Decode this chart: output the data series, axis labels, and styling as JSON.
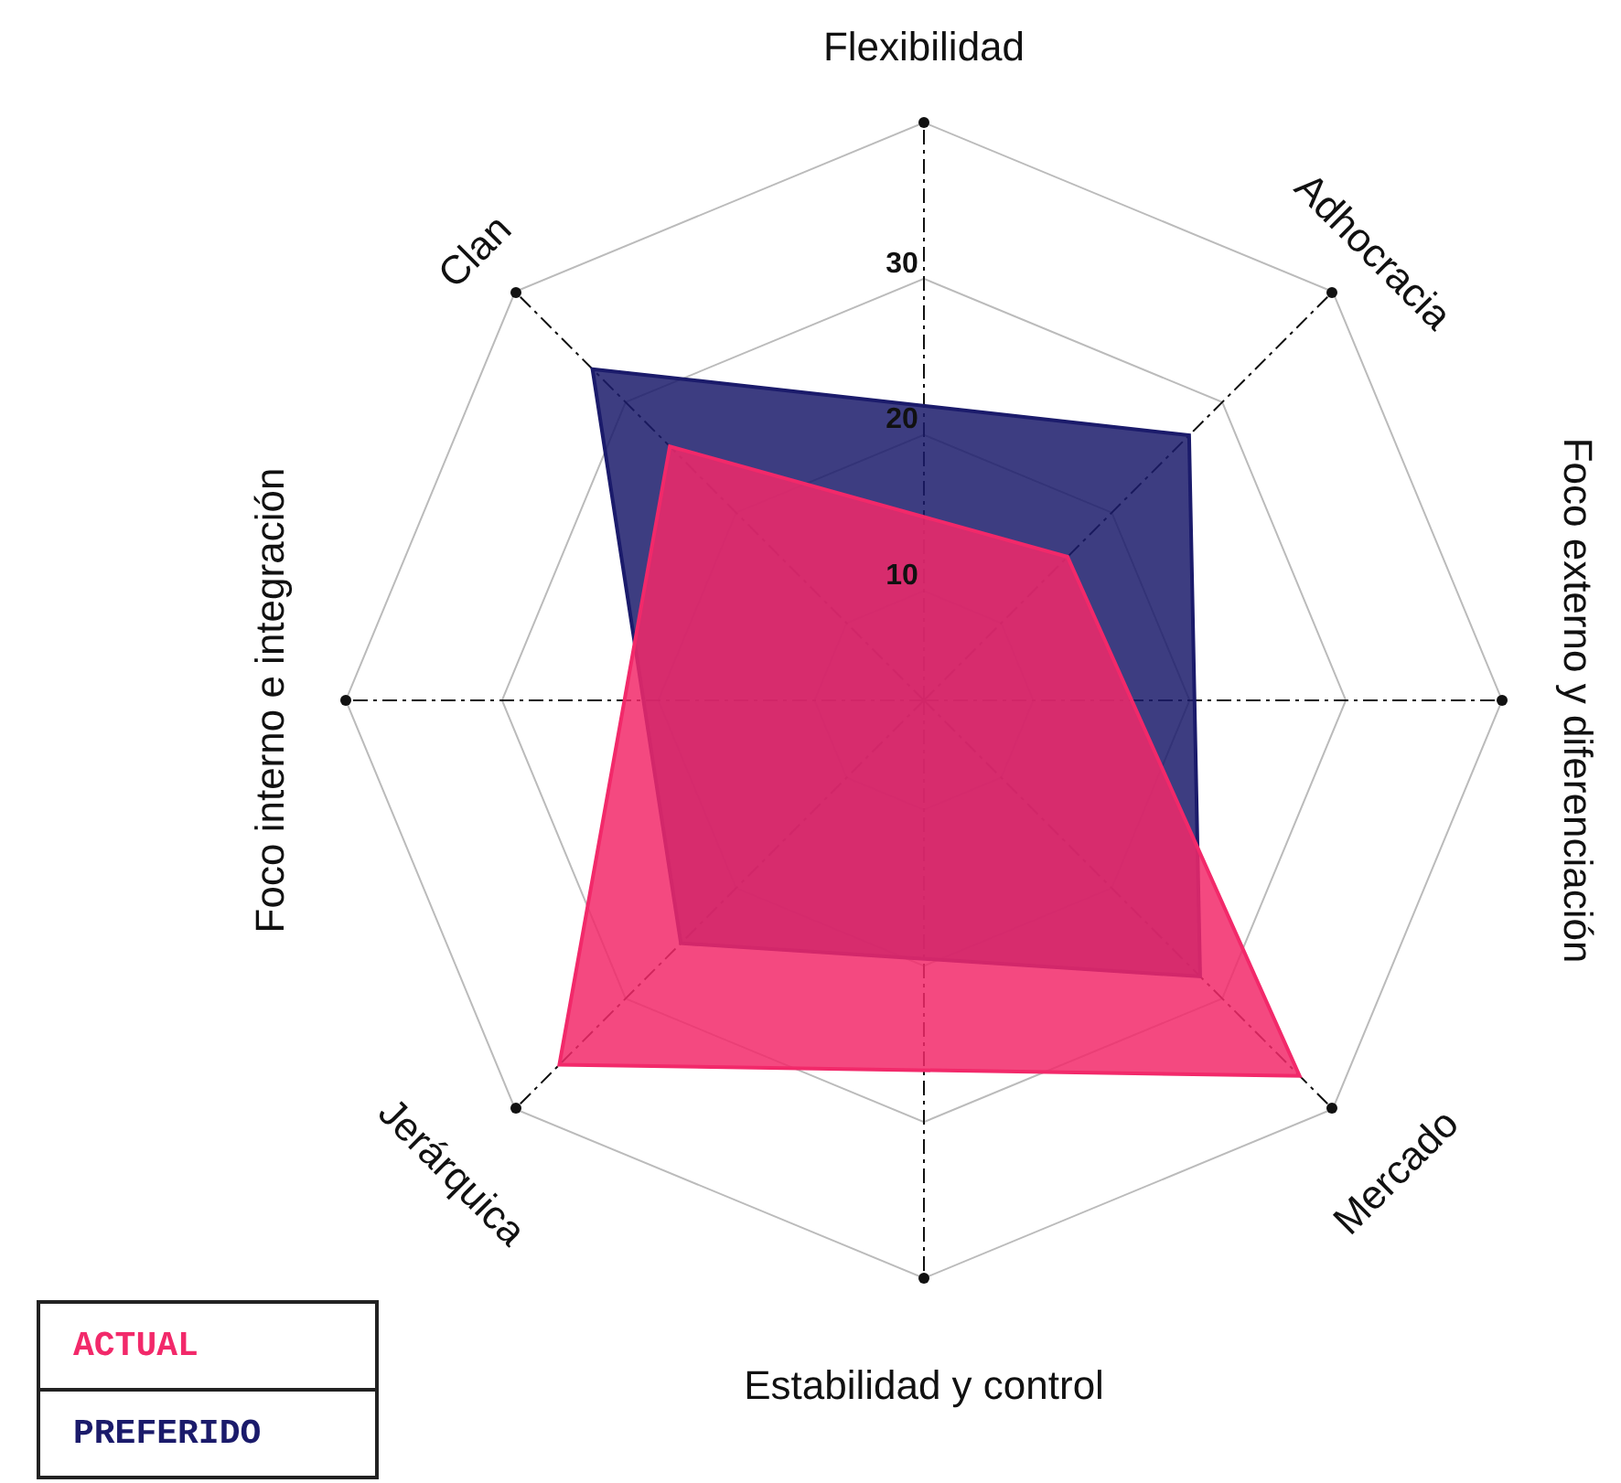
{
  "chart_data": {
    "type": "radar",
    "categories": [
      "Flexibilidad",
      "Adhocracia",
      "Foco externo y diferenciación",
      "Mercado",
      "Estabilidad y control",
      "Jerárquica",
      "Foco interno e integración",
      "Clan"
    ],
    "series": [
      {
        "name": "ACTUAL",
        "color": "#f2296a",
        "values": [
          null,
          16,
          null,
          37,
          null,
          36,
          null,
          26
        ]
      },
      {
        "name": "PREFERIDO",
        "color": "#1b1b6b",
        "values": [
          null,
          27,
          null,
          28,
          null,
          25,
          null,
          33
        ]
      }
    ],
    "ylim": [
      3,
      40
    ],
    "yticks": [
      10,
      20,
      30
    ],
    "grid": true,
    "legend": "bottom left",
    "marker": "none"
  }
}
